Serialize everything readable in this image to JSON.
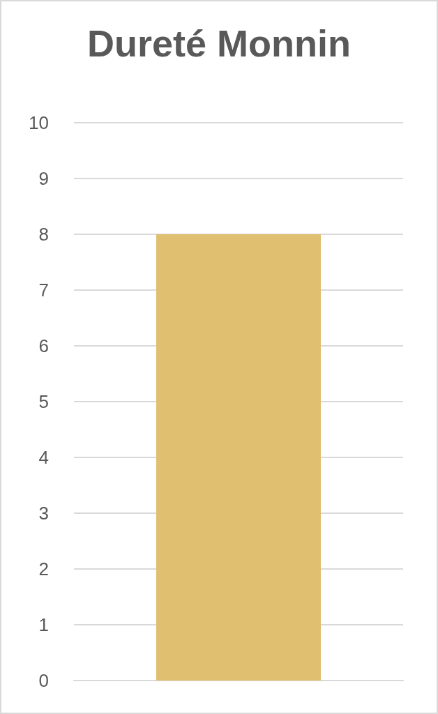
{
  "chart_data": {
    "type": "bar",
    "title": "Dureté Monnin",
    "categories": [
      null
    ],
    "values": [
      8
    ],
    "color": "#e0bf70",
    "ylim": [
      0,
      10
    ],
    "yticks": [
      0,
      1,
      2,
      3,
      4,
      5,
      6,
      7,
      8,
      9,
      10
    ],
    "grid": "y"
  }
}
